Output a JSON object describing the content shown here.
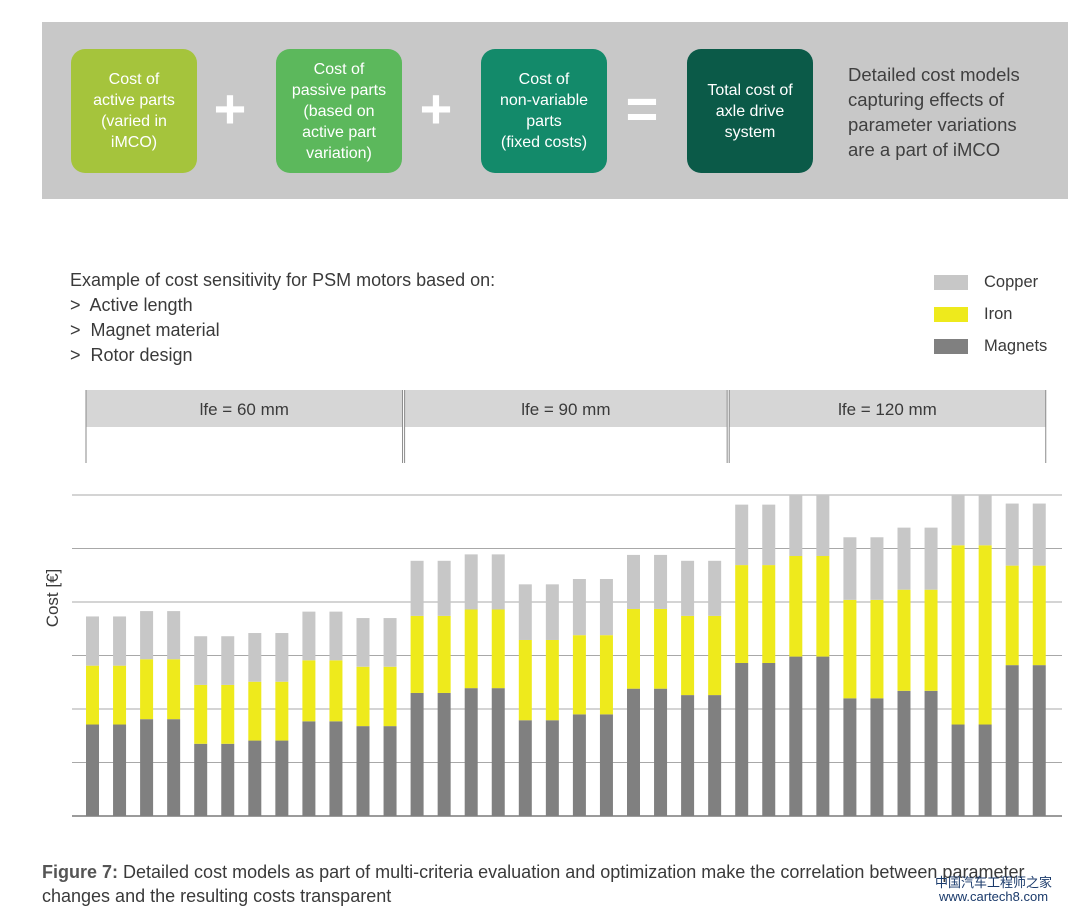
{
  "banner": {
    "boxes": [
      {
        "text": "Cost of\nactive parts\n(varied in\niMCO)",
        "color": "#a5c43c"
      },
      {
        "text": "Cost of\npassive parts\n(based on\nactive part\nvariation)",
        "color": "#5cb85c"
      },
      {
        "text": "Cost of\nnon-variable\nparts\n(fixed costs)",
        "color": "#138a6a"
      },
      {
        "text": "Total cost of\naxle drive\nsystem",
        "color": "#0b5a48"
      }
    ],
    "operators": [
      "+",
      "+",
      "="
    ],
    "note": "Detailed cost models\ncapturing effects of\nparameter variations\nare a part of iMCO"
  },
  "intro": {
    "heading": "Example of cost sensitivity for PSM motors based on:",
    "items": [
      ">  Active length",
      ">  Magnet material",
      ">  Rotor design"
    ]
  },
  "chart_data": {
    "type": "bar",
    "stacked": true,
    "ylabel": "Cost [€]",
    "ylim": [
      0,
      6
    ],
    "grid": true,
    "legend_position": "top-right",
    "groups": [
      {
        "label": "lfe = 60 mm",
        "bar_range": [
          0,
          12
        ]
      },
      {
        "label": "lfe = 90 mm",
        "bar_range": [
          12,
          24
        ]
      },
      {
        "label": "lfe = 120 mm",
        "bar_range": [
          24,
          36
        ]
      }
    ],
    "series": [
      {
        "name": "Magnets",
        "color": "#808080",
        "values": [
          1.71,
          1.71,
          1.81,
          1.81,
          1.35,
          1.35,
          1.41,
          1.41,
          1.77,
          1.77,
          1.68,
          1.68,
          2.3,
          2.3,
          2.39,
          2.39,
          1.79,
          1.79,
          1.9,
          1.9,
          2.38,
          2.38,
          2.26,
          2.26,
          2.86,
          2.86,
          2.98,
          2.98,
          2.2,
          2.2,
          2.34,
          2.34,
          1.71,
          1.71,
          2.82,
          2.82
        ]
      },
      {
        "name": "Iron",
        "color": "#eeea1c",
        "values": [
          1.1,
          1.1,
          1.12,
          1.12,
          1.1,
          1.1,
          1.1,
          1.1,
          1.14,
          1.14,
          1.11,
          1.11,
          1.44,
          1.44,
          1.47,
          1.47,
          1.5,
          1.5,
          1.48,
          1.48,
          1.49,
          1.49,
          1.48,
          1.48,
          1.83,
          1.83,
          1.88,
          1.88,
          1.84,
          1.84,
          1.89,
          1.89,
          3.35,
          3.35,
          1.86,
          1.86
        ]
      },
      {
        "name": "Copper",
        "color": "#c7c7c7",
        "values": [
          0.92,
          0.92,
          0.9,
          0.9,
          0.91,
          0.91,
          0.91,
          0.91,
          0.91,
          0.91,
          0.91,
          0.91,
          1.03,
          1.03,
          1.03,
          1.03,
          1.04,
          1.04,
          1.05,
          1.05,
          1.01,
          1.01,
          1.03,
          1.03,
          1.13,
          1.13,
          1.14,
          1.14,
          1.17,
          1.17,
          1.16,
          1.16,
          0.94,
          0.94,
          1.16,
          1.16
        ]
      }
    ]
  },
  "caption": {
    "label": "Figure 7:",
    "text": " Detailed cost models as part of multi-criteria evaluation and optimization make the correlation between parameter changes and the resulting costs transparent"
  },
  "watermark": {
    "line1": "中国汽车工程师之家",
    "line2": "www.cartech8.com"
  }
}
